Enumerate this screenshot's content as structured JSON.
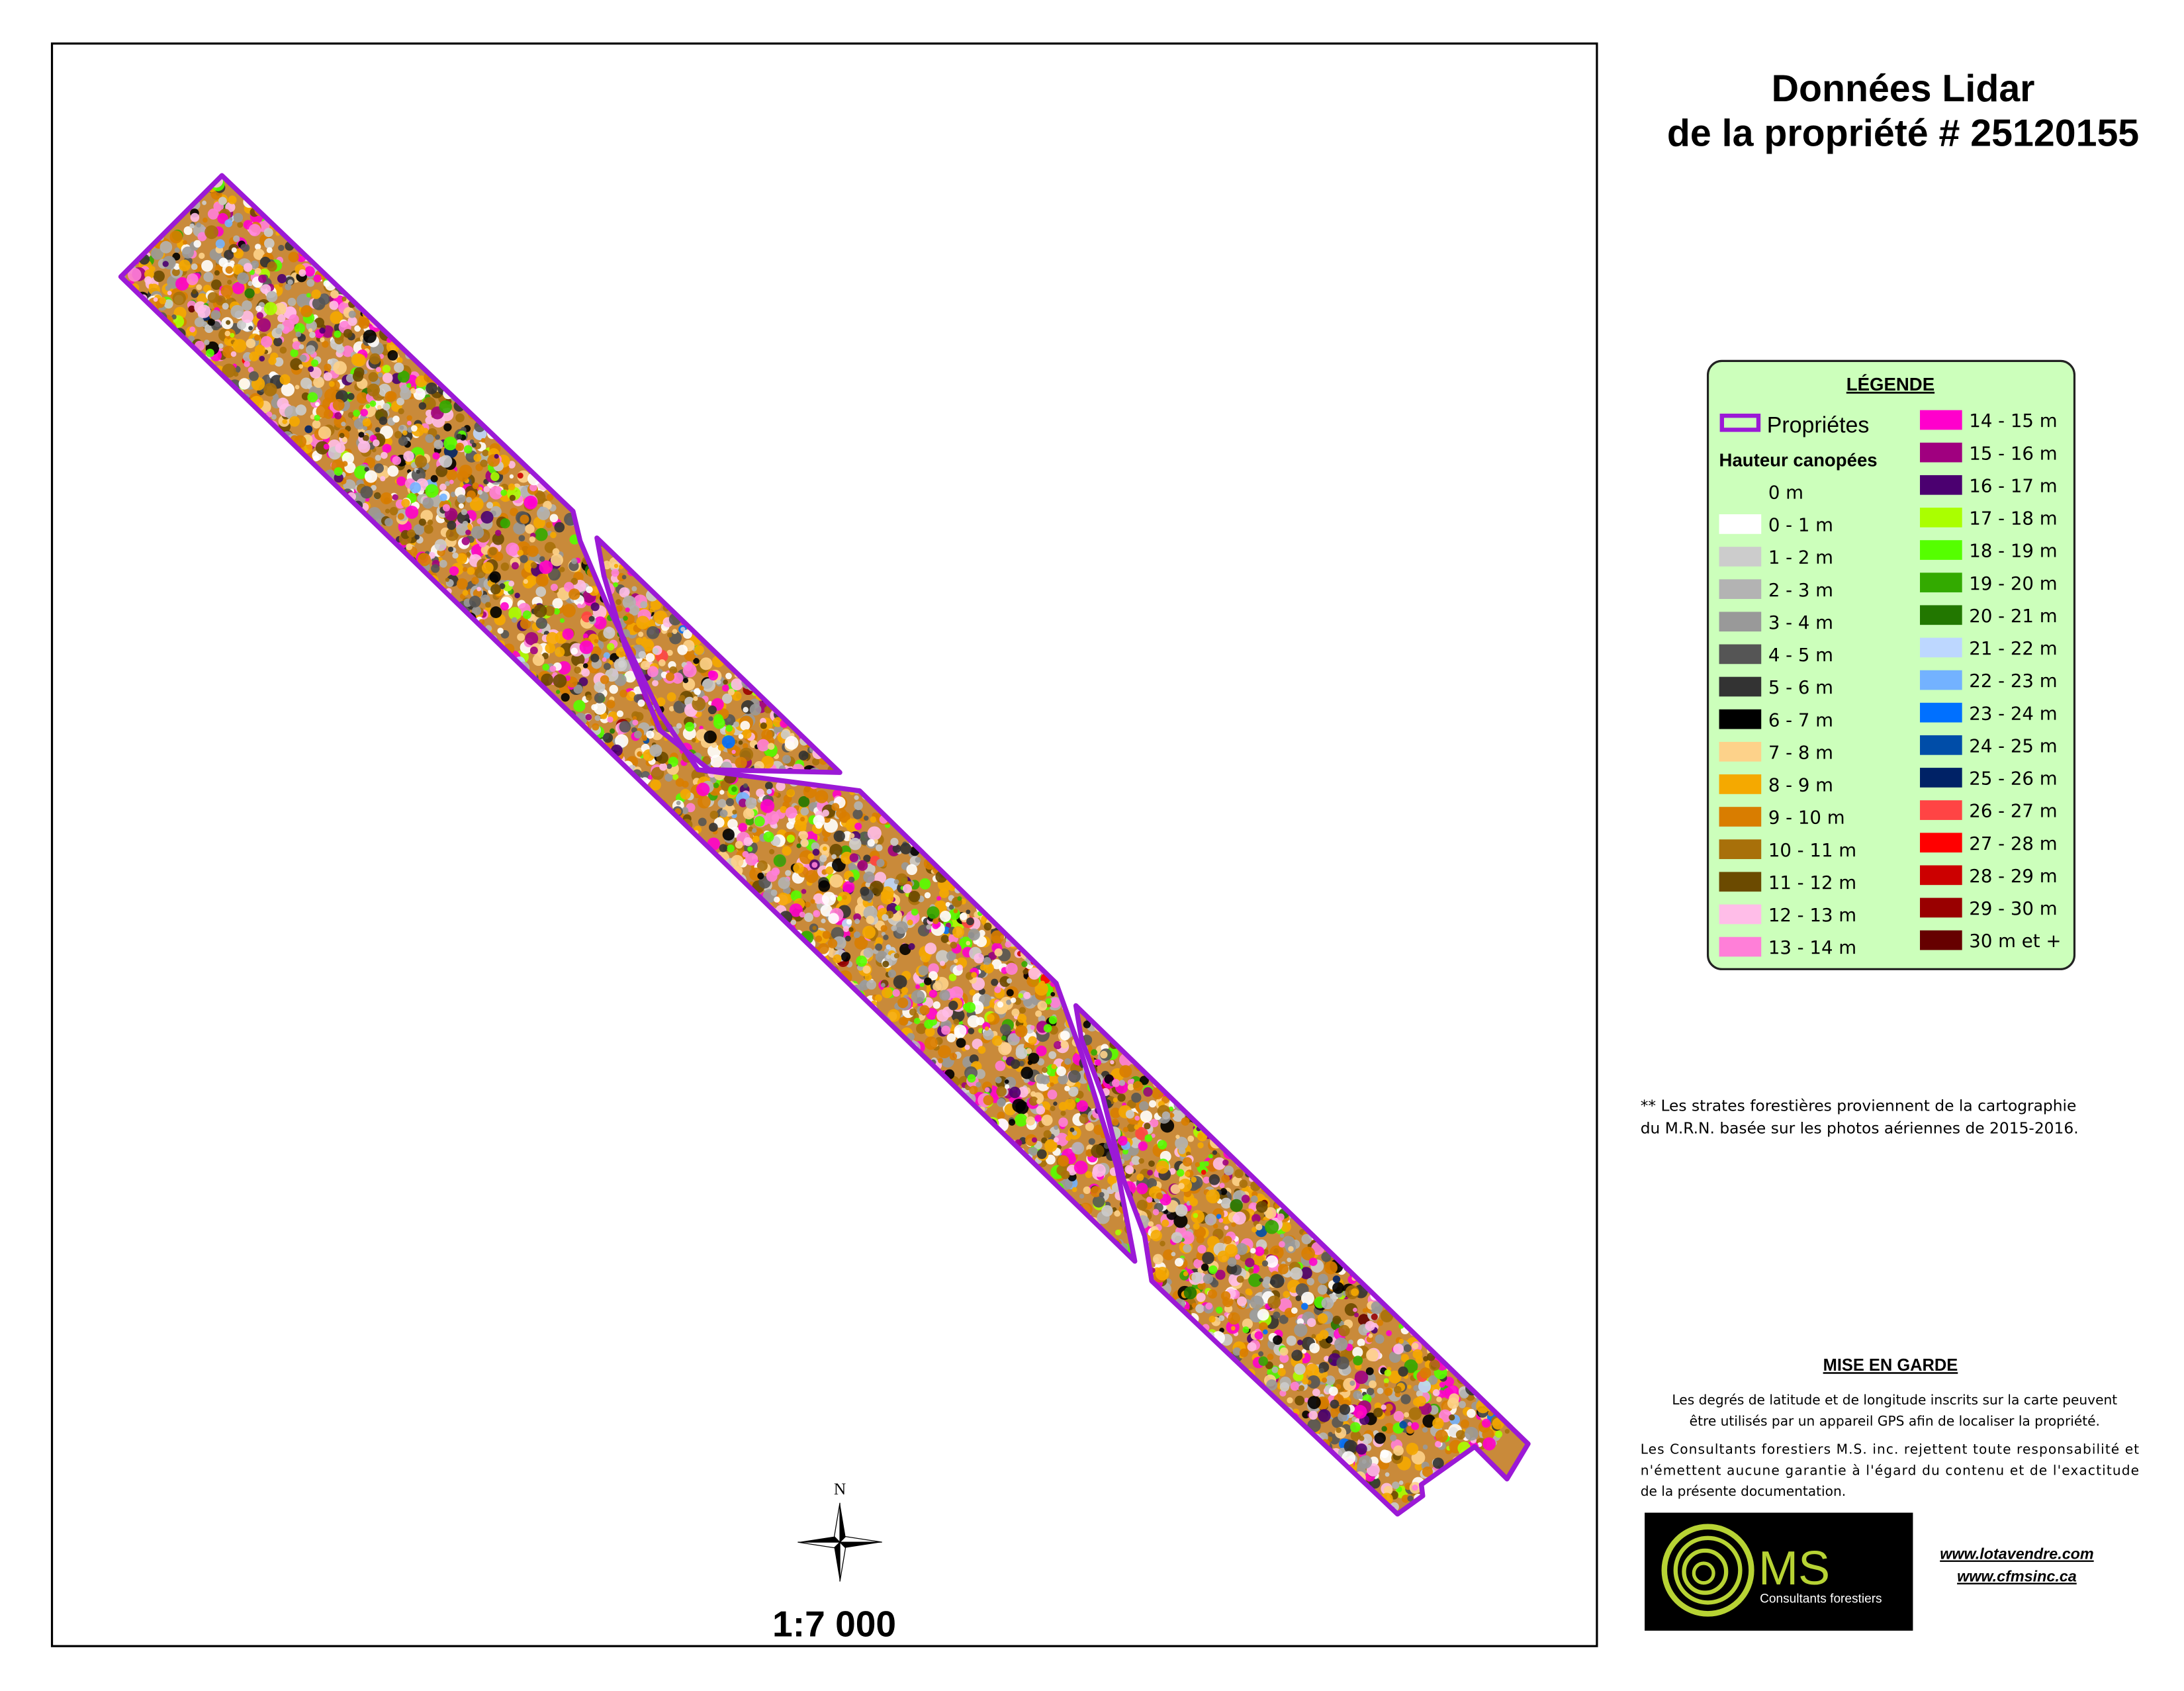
{
  "title": [
    "Données Lidar",
    "de la propriété # 25120155"
  ],
  "legend": {
    "title": "LÉGENDE",
    "property": "Propriétes",
    "property_color": "#9b19d6",
    "heading": "Hauteur canopées",
    "classes": [
      {
        "label": "0 m"
      },
      {
        "label": "0 - 1 m",
        "color": "#ffffff"
      },
      {
        "label": "1 - 2 m",
        "color": "#cccccc"
      },
      {
        "label": "2 - 3 m",
        "color": "#b3b3b3"
      },
      {
        "label": "3 - 4 m",
        "color": "#999999"
      },
      {
        "label": "4 - 5 m",
        "color": "#555555"
      },
      {
        "label": "5 - 6 m",
        "color": "#333333"
      },
      {
        "label": "6 - 7 m",
        "color": "#000000"
      },
      {
        "label": "7 - 8 m",
        "color": "#fdd28a"
      },
      {
        "label": "8 - 9 m",
        "color": "#f5a900"
      },
      {
        "label": "9 - 10 m",
        "color": "#d97d00"
      },
      {
        "label": "10 - 11 m",
        "color": "#a8700a"
      },
      {
        "label": "11 - 12 m",
        "color": "#6b4a00"
      },
      {
        "label": "12 - 13 m",
        "color": "#ffbde8"
      },
      {
        "label": "13 - 14 m",
        "color": "#ff7fd8"
      },
      {
        "label": "14 - 15 m",
        "color": "#ff00cc"
      },
      {
        "label": "15 - 16 m",
        "color": "#a0007f"
      },
      {
        "label": "16 - 17 m",
        "color": "#4b0070"
      },
      {
        "label": "17 - 18 m",
        "color": "#aaff00"
      },
      {
        "label": "18 - 19 m",
        "color": "#55ff00"
      },
      {
        "label": "19 - 20 m",
        "color": "#33aa00"
      },
      {
        "label": "20 - 21 m",
        "color": "#227700"
      },
      {
        "label": "21 - 22 m",
        "color": "#bdd7ff"
      },
      {
        "label": "22 - 23 m",
        "color": "#73b2ff"
      },
      {
        "label": "23 - 24 m",
        "color": "#0070ff"
      },
      {
        "label": "24 - 25 m",
        "color": "#004da8"
      },
      {
        "label": "25 - 26 m",
        "color": "#002266"
      },
      {
        "label": "26 - 27 m",
        "color": "#ff4444"
      },
      {
        "label": "27 - 28 m",
        "color": "#ff0000"
      },
      {
        "label": "28 - 29 m",
        "color": "#cc0000"
      },
      {
        "label": "29 - 30 m",
        "color": "#990000"
      },
      {
        "label": "30 m et +",
        "color": "#660000"
      }
    ]
  },
  "note": [
    "** Les strates forestières proviennent de la cartographie",
    "du M.R.N.  basée sur les photos aériennes  de 2015-2016."
  ],
  "warning": {
    "title": "MISE EN GARDE",
    "paragraph1": [
      "Les degrés de latitude et de longitude inscrits sur la carte peuvent",
      "être utilisés par un appareil GPS afin de localiser la propriété."
    ],
    "paragraph2": [
      "Les Consultants forestiers M.S. inc. rejettent toute responsabilité et",
      "n'émettent aucune garantie à l'égard du contenu et de l'exactitude",
      "de la présente documentation."
    ]
  },
  "logo": {
    "name": "MS",
    "subtitle": "Consultants forestiers"
  },
  "links": [
    "www.lotavendre.com",
    "www.cfmsinc.ca"
  ],
  "north": "N",
  "scale": "1:7 000"
}
